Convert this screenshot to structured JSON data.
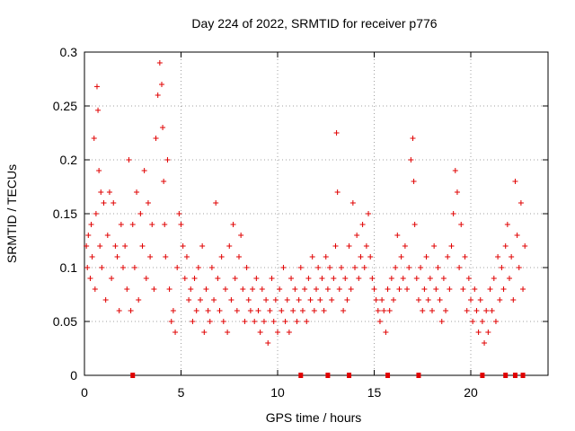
{
  "chart_data": {
    "type": "scatter",
    "title": "Day 224 of 2022, SRMTID for receiver p776",
    "xlabel": "GPS time / hours",
    "ylabel": "SRMTID / TECUs",
    "xlim": [
      0,
      24
    ],
    "ylim": [
      0,
      0.3
    ],
    "x_ticks": [
      0,
      5,
      10,
      15,
      20
    ],
    "x_tick_labels": [
      "0",
      "5",
      "10",
      "15",
      "20"
    ],
    "y_ticks": [
      0,
      0.05,
      0.1,
      0.15,
      0.2,
      0.25,
      0.3
    ],
    "y_tick_labels": [
      "0",
      "0.05",
      "0.1",
      "0.15",
      "0.2",
      "0.25",
      "0.3"
    ],
    "grid": true,
    "marker": "plus",
    "series": [
      {
        "name": "SRMTID",
        "color": "#e00000",
        "points": [
          [
            0.1,
            0.12
          ],
          [
            0.15,
            0.1
          ],
          [
            0.2,
            0.13
          ],
          [
            0.3,
            0.09
          ],
          [
            0.35,
            0.14
          ],
          [
            0.4,
            0.11
          ],
          [
            0.5,
            0.22
          ],
          [
            0.55,
            0.08
          ],
          [
            0.6,
            0.15
          ],
          [
            0.65,
            0.268
          ],
          [
            0.7,
            0.246
          ],
          [
            0.75,
            0.19
          ],
          [
            0.8,
            0.12
          ],
          [
            0.85,
            0.17
          ],
          [
            0.9,
            0.1
          ],
          [
            1.0,
            0.16
          ],
          [
            1.1,
            0.07
          ],
          [
            1.2,
            0.13
          ],
          [
            1.3,
            0.17
          ],
          [
            1.4,
            0.09
          ],
          [
            1.5,
            0.16
          ],
          [
            1.6,
            0.12
          ],
          [
            1.7,
            0.11
          ],
          [
            1.8,
            0.06
          ],
          [
            1.9,
            0.14
          ],
          [
            2.0,
            0.1
          ],
          [
            2.1,
            0.12
          ],
          [
            2.2,
            0.08
          ],
          [
            2.3,
            0.2
          ],
          [
            2.4,
            0.06
          ],
          [
            2.5,
            0.14
          ],
          [
            2.6,
            0.1
          ],
          [
            2.7,
            0.17
          ],
          [
            2.8,
            0.07
          ],
          [
            2.9,
            0.15
          ],
          [
            3.0,
            0.12
          ],
          [
            3.1,
            0.19
          ],
          [
            3.2,
            0.09
          ],
          [
            3.3,
            0.16
          ],
          [
            3.4,
            0.11
          ],
          [
            3.5,
            0.14
          ],
          [
            3.6,
            0.08
          ],
          [
            3.7,
            0.22
          ],
          [
            3.8,
            0.26
          ],
          [
            3.9,
            0.29
          ],
          [
            4.0,
            0.27
          ],
          [
            4.05,
            0.23
          ],
          [
            4.1,
            0.18
          ],
          [
            4.15,
            0.14
          ],
          [
            4.2,
            0.11
          ],
          [
            4.3,
            0.2
          ],
          [
            4.4,
            0.08
          ],
          [
            4.5,
            0.05
          ],
          [
            4.6,
            0.06
          ],
          [
            4.7,
            0.04
          ],
          [
            4.8,
            0.1
          ],
          [
            4.9,
            0.15
          ],
          [
            5.0,
            0.14
          ],
          [
            5.1,
            0.12
          ],
          [
            5.2,
            0.09
          ],
          [
            5.3,
            0.11
          ],
          [
            5.4,
            0.07
          ],
          [
            5.5,
            0.08
          ],
          [
            5.6,
            0.05
          ],
          [
            5.7,
            0.09
          ],
          [
            5.8,
            0.06
          ],
          [
            5.9,
            0.1
          ],
          [
            6.0,
            0.07
          ],
          [
            6.1,
            0.12
          ],
          [
            6.2,
            0.04
          ],
          [
            6.3,
            0.08
          ],
          [
            6.4,
            0.06
          ],
          [
            6.5,
            0.05
          ],
          [
            6.6,
            0.1
          ],
          [
            6.7,
            0.07
          ],
          [
            6.8,
            0.16
          ],
          [
            6.9,
            0.09
          ],
          [
            7.0,
            0.06
          ],
          [
            7.1,
            0.11
          ],
          [
            7.2,
            0.05
          ],
          [
            7.3,
            0.08
          ],
          [
            7.4,
            0.04
          ],
          [
            7.5,
            0.12
          ],
          [
            7.6,
            0.07
          ],
          [
            7.7,
            0.14
          ],
          [
            7.8,
            0.09
          ],
          [
            7.9,
            0.06
          ],
          [
            8.0,
            0.11
          ],
          [
            8.1,
            0.13
          ],
          [
            8.2,
            0.08
          ],
          [
            8.3,
            0.05
          ],
          [
            8.4,
            0.1
          ],
          [
            8.5,
            0.07
          ],
          [
            8.6,
            0.06
          ],
          [
            8.7,
            0.08
          ],
          [
            8.8,
            0.05
          ],
          [
            8.9,
            0.09
          ],
          [
            9.0,
            0.06
          ],
          [
            9.1,
            0.04
          ],
          [
            9.2,
            0.08
          ],
          [
            9.3,
            0.05
          ],
          [
            9.4,
            0.07
          ],
          [
            9.5,
            0.03
          ],
          [
            9.6,
            0.06
          ],
          [
            9.7,
            0.09
          ],
          [
            9.8,
            0.05
          ],
          [
            9.9,
            0.07
          ],
          [
            10.0,
            0.04
          ],
          [
            10.1,
            0.08
          ],
          [
            10.2,
            0.06
          ],
          [
            10.3,
            0.1
          ],
          [
            10.4,
            0.05
          ],
          [
            10.5,
            0.07
          ],
          [
            10.6,
            0.04
          ],
          [
            10.7,
            0.09
          ],
          [
            10.8,
            0.06
          ],
          [
            10.9,
            0.08
          ],
          [
            11.0,
            0.05
          ],
          [
            11.1,
            0.07
          ],
          [
            11.2,
            0.1
          ],
          [
            11.3,
            0.06
          ],
          [
            11.4,
            0.08
          ],
          [
            11.5,
            0.05
          ],
          [
            11.6,
            0.09
          ],
          [
            11.7,
            0.07
          ],
          [
            11.8,
            0.11
          ],
          [
            11.9,
            0.06
          ],
          [
            12.0,
            0.08
          ],
          [
            12.1,
            0.1
          ],
          [
            12.2,
            0.07
          ],
          [
            12.3,
            0.09
          ],
          [
            12.4,
            0.06
          ],
          [
            12.5,
            0.11
          ],
          [
            12.6,
            0.08
          ],
          [
            12.7,
            0.1
          ],
          [
            12.8,
            0.07
          ],
          [
            12.9,
            0.09
          ],
          [
            13.0,
            0.12
          ],
          [
            13.05,
            0.225
          ],
          [
            13.1,
            0.17
          ],
          [
            13.2,
            0.08
          ],
          [
            13.3,
            0.1
          ],
          [
            13.4,
            0.06
          ],
          [
            13.5,
            0.09
          ],
          [
            13.6,
            0.07
          ],
          [
            13.7,
            0.12
          ],
          [
            13.8,
            0.08
          ],
          [
            13.9,
            0.16
          ],
          [
            14.0,
            0.1
          ],
          [
            14.1,
            0.13
          ],
          [
            14.2,
            0.09
          ],
          [
            14.3,
            0.11
          ],
          [
            14.4,
            0.14
          ],
          [
            14.5,
            0.1
          ],
          [
            14.6,
            0.12
          ],
          [
            14.7,
            0.15
          ],
          [
            14.8,
            0.11
          ],
          [
            14.9,
            0.09
          ],
          [
            15.0,
            0.08
          ],
          [
            15.1,
            0.07
          ],
          [
            15.2,
            0.06
          ],
          [
            15.3,
            0.05
          ],
          [
            15.4,
            0.07
          ],
          [
            15.5,
            0.06
          ],
          [
            15.6,
            0.04
          ],
          [
            15.7,
            0.08
          ],
          [
            15.8,
            0.06
          ],
          [
            15.9,
            0.09
          ],
          [
            16.0,
            0.07
          ],
          [
            16.1,
            0.1
          ],
          [
            16.2,
            0.13
          ],
          [
            16.3,
            0.08
          ],
          [
            16.4,
            0.11
          ],
          [
            16.5,
            0.09
          ],
          [
            16.6,
            0.12
          ],
          [
            16.7,
            0.08
          ],
          [
            16.8,
            0.1
          ],
          [
            16.9,
            0.2
          ],
          [
            17.0,
            0.22
          ],
          [
            17.05,
            0.18
          ],
          [
            17.1,
            0.14
          ],
          [
            17.2,
            0.09
          ],
          [
            17.3,
            0.07
          ],
          [
            17.4,
            0.1
          ],
          [
            17.5,
            0.06
          ],
          [
            17.6,
            0.08
          ],
          [
            17.7,
            0.11
          ],
          [
            17.8,
            0.07
          ],
          [
            17.9,
            0.09
          ],
          [
            18.0,
            0.06
          ],
          [
            18.1,
            0.12
          ],
          [
            18.2,
            0.08
          ],
          [
            18.3,
            0.1
          ],
          [
            18.4,
            0.07
          ],
          [
            18.5,
            0.05
          ],
          [
            18.6,
            0.09
          ],
          [
            18.7,
            0.06
          ],
          [
            18.8,
            0.11
          ],
          [
            18.9,
            0.08
          ],
          [
            19.0,
            0.12
          ],
          [
            19.1,
            0.15
          ],
          [
            19.2,
            0.19
          ],
          [
            19.3,
            0.17
          ],
          [
            19.4,
            0.1
          ],
          [
            19.5,
            0.14
          ],
          [
            19.6,
            0.08
          ],
          [
            19.7,
            0.11
          ],
          [
            19.8,
            0.06
          ],
          [
            19.9,
            0.09
          ],
          [
            20.0,
            0.07
          ],
          [
            20.1,
            0.05
          ],
          [
            20.2,
            0.08
          ],
          [
            20.3,
            0.06
          ],
          [
            20.4,
            0.04
          ],
          [
            20.5,
            0.07
          ],
          [
            20.6,
            0.05
          ],
          [
            20.7,
            0.03
          ],
          [
            20.8,
            0.06
          ],
          [
            20.9,
            0.04
          ],
          [
            21.0,
            0.08
          ],
          [
            21.1,
            0.06
          ],
          [
            21.2,
            0.09
          ],
          [
            21.3,
            0.05
          ],
          [
            21.4,
            0.11
          ],
          [
            21.5,
            0.07
          ],
          [
            21.6,
            0.1
          ],
          [
            21.7,
            0.08
          ],
          [
            21.8,
            0.12
          ],
          [
            21.9,
            0.14
          ],
          [
            22.0,
            0.09
          ],
          [
            22.1,
            0.11
          ],
          [
            22.2,
            0.07
          ],
          [
            22.3,
            0.18
          ],
          [
            22.4,
            0.13
          ],
          [
            22.5,
            0.1
          ],
          [
            22.6,
            0.16
          ],
          [
            22.7,
            0.08
          ],
          [
            22.8,
            0.12
          ]
        ],
        "zero_markers_x": [
          2.5,
          11.2,
          12.6,
          13.7,
          15.7,
          17.3,
          20.6,
          21.8,
          22.3,
          22.7
        ]
      }
    ]
  }
}
